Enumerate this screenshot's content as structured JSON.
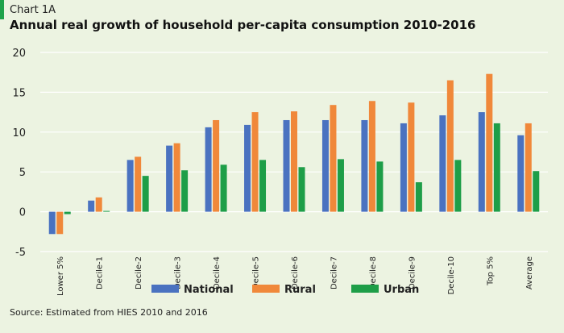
{
  "header": {
    "label": "Chart 1A",
    "title": "Annual real growth of household per-capita consumption 2010-2016"
  },
  "footer": {
    "source": "Source: Estimated from HIES 2010 and 2016"
  },
  "colors": {
    "background": "#ecf3e1",
    "accent": "#1ea24a"
  },
  "chart_data": {
    "type": "bar",
    "categories": [
      "Lower 5%",
      "Decile-1",
      "Decile-2",
      "Decile-3",
      "Decile-4",
      "Decile-5",
      "Decile-6",
      "Decile-7",
      "Decile-8",
      "Decile-9",
      "Decile-10",
      "Top 5%",
      "Average"
    ],
    "series": [
      {
        "name": "National",
        "color": "#4a72c0",
        "values": [
          -2.8,
          1.4,
          6.5,
          8.3,
          10.6,
          10.9,
          11.5,
          11.5,
          11.5,
          11.1,
          12.1,
          12.5,
          9.6
        ]
      },
      {
        "name": "Rural",
        "color": "#f0883a",
        "values": [
          -2.8,
          1.8,
          6.9,
          8.6,
          11.5,
          12.5,
          12.6,
          13.4,
          13.9,
          13.7,
          16.5,
          17.3,
          11.1
        ]
      },
      {
        "name": "Urban",
        "color": "#1e9e48",
        "values": [
          -0.3,
          0.1,
          4.5,
          5.2,
          5.9,
          6.5,
          5.6,
          6.6,
          6.3,
          3.7,
          6.5,
          11.1,
          5.1
        ]
      }
    ],
    "yticks": [
      -5,
      0,
      5,
      10,
      15,
      20
    ],
    "ylim": [
      -5,
      20
    ],
    "grid": true,
    "legend_position": "bottom"
  }
}
